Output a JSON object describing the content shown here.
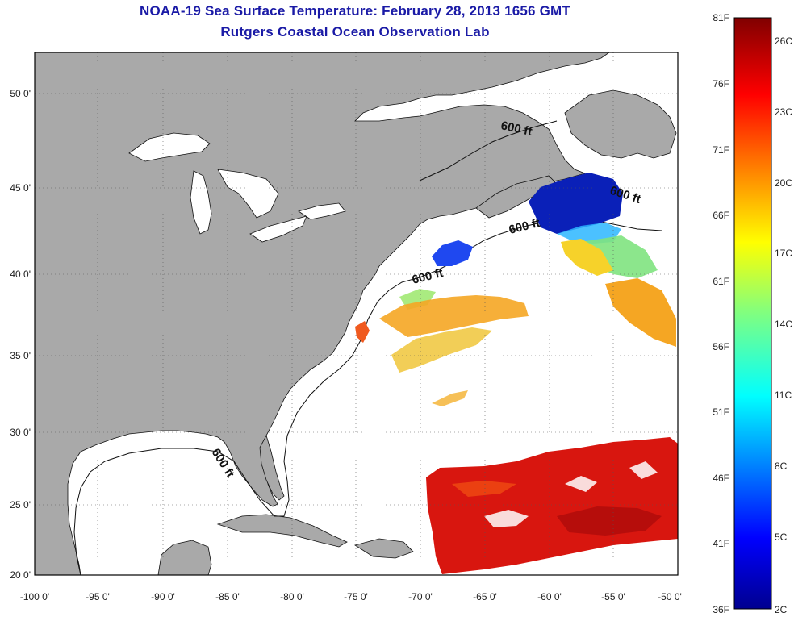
{
  "header": {
    "title": "NOAA-19 Sea Surface Temperature:  February 28, 2013 1656 GMT",
    "subtitle": "Rutgers Coastal Ocean Observation Lab"
  },
  "map": {
    "lon_ticks": [
      "-100 0'",
      "-95 0'",
      "-90 0'",
      "-85 0'",
      "-80 0'",
      "-75 0'",
      "-70 0'",
      "-65 0'",
      "-60 0'",
      "-55 0'",
      "-50 0'"
    ],
    "lat_ticks": [
      "50 0'",
      "45 0'",
      "40 0'",
      "35 0'",
      "30 0'",
      "25 0'",
      "20 0'"
    ],
    "contour_labels": [
      "600 ft",
      "600 ft",
      "600 ft",
      "600 ft",
      "600 ft"
    ],
    "colors": {
      "land": "#a9a9a9",
      "ocean": "#ffffff",
      "title": "#1a1aa6"
    }
  },
  "colorbar": {
    "fahrenheit": [
      "81F",
      "76F",
      "71F",
      "66F",
      "61F",
      "56F",
      "51F",
      "46F",
      "41F",
      "36F"
    ],
    "celsius": [
      "26C",
      "23C",
      "20C",
      "17C",
      "14C",
      "11C",
      "8C",
      "5C",
      "2C"
    ]
  }
}
